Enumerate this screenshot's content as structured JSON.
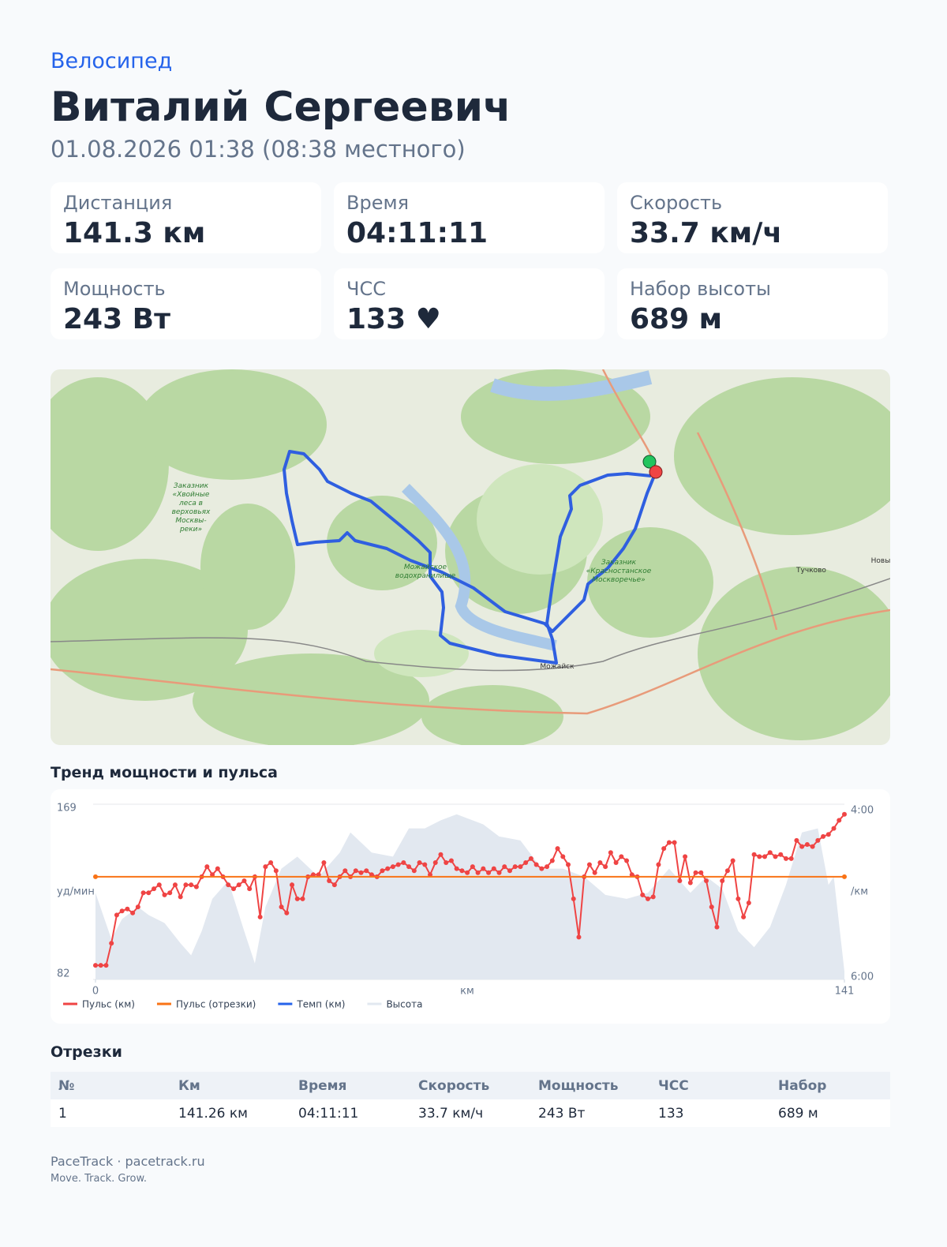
{
  "header": {
    "sport": "Велосипед",
    "name": "Виталий Сергеевич",
    "datetime": "01.08.2026 01:38 (08:38 местного)"
  },
  "stats": [
    {
      "label": "Дистанция",
      "value": "141.3 км"
    },
    {
      "label": "Время",
      "value": "04:11:11"
    },
    {
      "label": "Скорость",
      "value": "33.7 км/ч"
    },
    {
      "label": "Мощность",
      "value": "243 Вт"
    },
    {
      "label": "ЧСС",
      "value": "133 ♥"
    },
    {
      "label": "Набор высоты",
      "value": "689 м"
    }
  ],
  "map": {
    "labels": [
      "Заказник",
      "«Хвойные",
      "леса в",
      "верховьях",
      "Москвы-",
      "реки»",
      "Можайское",
      "водохранилище",
      "Заказник",
      "«Красностанское",
      "Москворечье»",
      "Тучково",
      "Новы",
      "Можайск"
    ]
  },
  "chart_section_title": "Тренд мощности и пульса",
  "chart_data": {
    "type": "line",
    "ylabel": "уд/мин",
    "y2label": "/км",
    "xlabel": "км",
    "xlim": [
      0,
      141
    ],
    "xticks": [
      0,
      141
    ],
    "ylim": [
      82,
      169
    ],
    "yticks": [
      82,
      169
    ],
    "y2lim": [
      360,
      240
    ],
    "y2ticks": [
      {
        "value": 240,
        "label": "4:00"
      },
      {
        "value": 360,
        "label": "6:00"
      }
    ],
    "grid": true,
    "series": [
      {
        "name": "Пульс (км)",
        "color": "#ef4444",
        "markers": true,
        "x": [
          0,
          1,
          2,
          3,
          4,
          5,
          6,
          7,
          8,
          9,
          10,
          11,
          12,
          13,
          14,
          15,
          16,
          17,
          18,
          19,
          20,
          21,
          22,
          23,
          24,
          25,
          26,
          27,
          28,
          29,
          30,
          31,
          32,
          33,
          34,
          35,
          36,
          37,
          38,
          39,
          40,
          41,
          42,
          43,
          44,
          45,
          46,
          47,
          48,
          49,
          50,
          51,
          52,
          53,
          54,
          55,
          56,
          57,
          58,
          59,
          60,
          61,
          62,
          63,
          64,
          65,
          66,
          67,
          68,
          69,
          70,
          71,
          72,
          73,
          74,
          75,
          76,
          77,
          78,
          79,
          80,
          81,
          82,
          83,
          84,
          85,
          86,
          87,
          88,
          89,
          90,
          91,
          92,
          93,
          94,
          95,
          96,
          97,
          98,
          99,
          100,
          101,
          102,
          103,
          104,
          105,
          106,
          107,
          108,
          109,
          110,
          111,
          112,
          113,
          114,
          115,
          116,
          117,
          118,
          119,
          120,
          121,
          122,
          123,
          124,
          125,
          126,
          127,
          128,
          129,
          130,
          131,
          132,
          133,
          134,
          135,
          136,
          137,
          138,
          139,
          140,
          141
        ],
        "values": [
          89,
          89,
          89,
          100,
          114,
          116,
          117,
          115,
          118,
          125,
          125,
          127,
          129,
          124,
          125,
          129,
          123,
          129,
          129,
          128,
          133,
          138,
          134,
          137,
          133,
          129,
          127,
          129,
          131,
          127,
          133,
          113,
          138,
          140,
          136,
          118,
          115,
          129,
          122,
          122,
          133,
          134,
          134,
          140,
          131,
          129,
          133,
          136,
          133,
          136,
          135,
          136,
          134,
          133,
          136,
          137,
          138,
          139,
          140,
          138,
          136,
          140,
          139,
          134,
          140,
          144,
          140,
          141,
          137,
          136,
          135,
          138,
          135,
          137,
          135,
          137,
          135,
          138,
          136,
          138,
          138,
          140,
          142,
          139,
          137,
          138,
          141,
          147,
          143,
          139,
          122,
          103,
          133,
          139,
          135,
          140,
          138,
          145,
          140,
          143,
          141,
          134,
          133,
          124,
          122,
          123,
          139,
          147,
          150,
          150,
          131,
          143,
          130,
          135,
          135,
          131,
          118,
          108,
          131,
          136,
          141,
          122,
          113,
          120,
          144,
          143,
          143,
          145,
          143,
          144,
          142,
          142,
          151,
          148,
          149,
          148,
          151,
          153,
          154,
          157,
          161,
          164
        ]
      },
      {
        "name": "Пульс (отрезки)",
        "color": "#f97316",
        "markers": true,
        "x": [
          0,
          141
        ],
        "values": [
          133,
          133
        ]
      },
      {
        "name": "Темп (км)",
        "color": "#2563eb"
      },
      {
        "name": "Высота",
        "color": "#e2e8f0",
        "area": true,
        "x": [
          0,
          3,
          5,
          8,
          10,
          13,
          16,
          18,
          20,
          22,
          25,
          28,
          30,
          32,
          35,
          38,
          42,
          46,
          48,
          52,
          56,
          59,
          62,
          65,
          68,
          71,
          73,
          76,
          80,
          84,
          88,
          92,
          96,
          100,
          104,
          108,
          112,
          115,
          118,
          121,
          124,
          127,
          130,
          133,
          136,
          138,
          139,
          141
        ],
        "values": [
          125,
          102,
          112,
          118,
          114,
          110,
          100,
          94,
          106,
          122,
          131,
          106,
          90,
          118,
          137,
          143,
          133,
          145,
          155,
          145,
          143,
          157,
          157,
          161,
          164,
          161,
          159,
          153,
          151,
          137,
          137,
          133,
          124,
          122,
          125,
          137,
          125,
          133,
          127,
          106,
          98,
          108,
          129,
          155,
          157,
          129,
          133,
          86
        ]
      }
    ]
  },
  "segments": {
    "title": "Отрезки",
    "columns": [
      "№",
      "Км",
      "Время",
      "Скорость",
      "Мощность",
      "ЧСС",
      "Набор"
    ],
    "rows": [
      [
        "1",
        "141.26 км",
        "04:11:11",
        "33.7 км/ч",
        "243 Вт",
        "133",
        "689 м"
      ]
    ]
  },
  "footer": {
    "brand": "PaceTrack · pacetrack.ru",
    "tagline": "Move. Track. Grow."
  }
}
